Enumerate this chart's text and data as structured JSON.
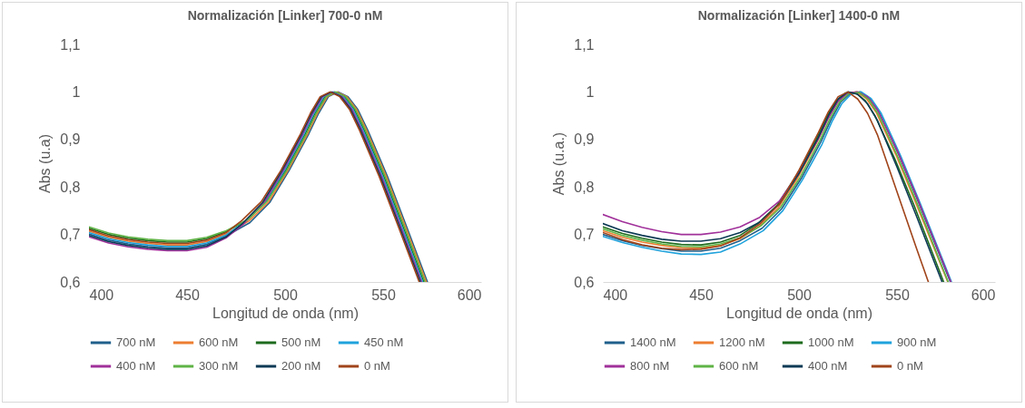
{
  "chart_data": [
    {
      "type": "line",
      "title": "Normalización [Linker] 700-0  nM",
      "xlabel": "Longitud de onda (nm)",
      "ylabel": "Abs (u.a)",
      "xlim": [
        400,
        600
      ],
      "xticks": [
        400,
        450,
        500,
        550,
        600
      ],
      "ylim": [
        0.6,
        1.1
      ],
      "yticks": [
        {
          "value": 0.6,
          "label": "0,6"
        },
        {
          "value": 0.7,
          "label": "0,7"
        },
        {
          "value": 0.8,
          "label": "0,8"
        },
        {
          "value": 0.9,
          "label": "0,9"
        },
        1,
        {
          "value": 1.1,
          "label": "1,1"
        }
      ],
      "grid": false,
      "legend": "bottom",
      "marker": "none",
      "line_style": "solid",
      "series": [
        {
          "name": "700 nM",
          "color": "#1f5f8b",
          "x": [
            400,
            410,
            420,
            430,
            440,
            450,
            460,
            470,
            482.1,
            492.1,
            502.1,
            512.1,
            517.1,
            522.1,
            527.1,
            532.1,
            537.1,
            542.1,
            552.1,
            562.1,
            572.6
          ],
          "values": [
            0.701,
            0.688,
            0.68,
            0.675,
            0.672,
            0.672,
            0.679,
            0.697,
            0.725,
            0.767,
            0.835,
            0.912,
            0.955,
            0.99,
            1.0,
            0.99,
            0.963,
            0.92,
            0.823,
            0.715,
            0.6
          ]
        },
        {
          "name": "600 nM",
          "color": "#ed7d31",
          "x": [
            400,
            410,
            420,
            430,
            440,
            450,
            460,
            470,
            481.5,
            491.5,
            501.5,
            511.5,
            516.5,
            521.5,
            526.5,
            531.5,
            536.5,
            541.5,
            551.5,
            561.5,
            572
          ],
          "values": [
            0.707,
            0.694,
            0.686,
            0.681,
            0.678,
            0.678,
            0.685,
            0.701,
            0.728,
            0.768,
            0.835,
            0.912,
            0.955,
            0.99,
            1.0,
            0.99,
            0.963,
            0.92,
            0.823,
            0.715,
            0.6
          ]
        },
        {
          "name": "500 nM",
          "color": "#1e6b1e",
          "x": [
            400,
            410,
            420,
            430,
            440,
            450,
            460,
            470,
            480.3,
            490.3,
            500.3,
            510.3,
            515.3,
            520.3,
            525.3,
            530.3,
            535.3,
            540.3,
            550.3,
            560.3,
            570.8
          ],
          "values": [
            0.713,
            0.7,
            0.692,
            0.687,
            0.684,
            0.684,
            0.691,
            0.706,
            0.73,
            0.77,
            0.835,
            0.912,
            0.955,
            0.99,
            1.0,
            0.99,
            0.963,
            0.92,
            0.823,
            0.715,
            0.6
          ]
        },
        {
          "name": "450 nM",
          "color": "#1fa2dc",
          "x": [
            400,
            410,
            420,
            430,
            440,
            450,
            460,
            470,
            479.7,
            489.7,
            499.7,
            509.7,
            514.7,
            519.7,
            524.7,
            529.7,
            534.7,
            539.7,
            549.7,
            559.7,
            570.2
          ],
          "values": [
            0.704,
            0.691,
            0.683,
            0.678,
            0.675,
            0.675,
            0.682,
            0.699,
            0.727,
            0.768,
            0.835,
            0.912,
            0.955,
            0.99,
            1.0,
            0.99,
            0.963,
            0.92,
            0.823,
            0.715,
            0.6
          ]
        },
        {
          "name": "400 nM",
          "color": "#a0309a",
          "x": [
            400,
            410,
            420,
            430,
            440,
            450,
            460,
            470,
            479.1,
            489.1,
            499.1,
            509.1,
            514.1,
            519.1,
            524.1,
            529.1,
            534.1,
            539.1,
            549.1,
            559.1,
            569.6
          ],
          "values": [
            0.695,
            0.682,
            0.674,
            0.669,
            0.666,
            0.666,
            0.673,
            0.693,
            0.723,
            0.766,
            0.835,
            0.912,
            0.955,
            0.99,
            1.0,
            0.99,
            0.963,
            0.92,
            0.823,
            0.715,
            0.6
          ]
        },
        {
          "name": "300 nM",
          "color": "#5fb346",
          "x": [
            400,
            410,
            420,
            430,
            440,
            450,
            460,
            470,
            480.9,
            490.9,
            500.9,
            510.9,
            515.9,
            520.9,
            525.9,
            530.9,
            535.9,
            540.9,
            550.9,
            560.9,
            571.4
          ],
          "values": [
            0.716,
            0.703,
            0.695,
            0.69,
            0.687,
            0.687,
            0.694,
            0.708,
            0.731,
            0.77,
            0.835,
            0.912,
            0.955,
            0.99,
            1.0,
            0.99,
            0.963,
            0.92,
            0.823,
            0.715,
            0.6
          ]
        },
        {
          "name": "200 nM",
          "color": "#0d3a55",
          "x": [
            400,
            410,
            420,
            430,
            440,
            450,
            460,
            470,
            478.5,
            488.5,
            498.5,
            508.5,
            513.5,
            518.5,
            523.5,
            528.5,
            533.5,
            538.5,
            548.5,
            558.5,
            569
          ],
          "values": [
            0.698,
            0.685,
            0.677,
            0.672,
            0.669,
            0.669,
            0.676,
            0.695,
            0.724,
            0.767,
            0.835,
            0.912,
            0.955,
            0.99,
            1.0,
            0.99,
            0.963,
            0.92,
            0.823,
            0.715,
            0.6
          ]
        },
        {
          "name": "0 nM",
          "color": "#a0441a",
          "x": [
            400,
            410,
            420,
            430,
            440,
            450,
            460,
            470,
            477.9,
            487.9,
            497.9,
            507.9,
            512.9,
            517.9,
            522.9,
            527.9,
            532.9,
            537.9,
            547.9,
            557.9,
            568.4
          ],
          "values": [
            0.71,
            0.697,
            0.689,
            0.684,
            0.681,
            0.681,
            0.688,
            0.704,
            0.729,
            0.769,
            0.835,
            0.912,
            0.955,
            0.99,
            1.0,
            0.99,
            0.963,
            0.92,
            0.823,
            0.715,
            0.6
          ]
        }
      ]
    },
    {
      "type": "line",
      "title": "Normalización [Linker] 1400-0  nM",
      "xlabel": "Longitud de onda (nm)",
      "ylabel": "Abs (u.a.)",
      "xlim": [
        400,
        600
      ],
      "xticks": [
        400,
        450,
        500,
        550,
        600
      ],
      "ylim": [
        0.6,
        1.1
      ],
      "yticks": [
        {
          "value": 0.6,
          "label": "0,6"
        },
        {
          "value": 0.7,
          "label": "0,7"
        },
        {
          "value": 0.8,
          "label": "0,8"
        },
        {
          "value": 0.9,
          "label": "0,9"
        },
        1,
        {
          "value": 1.1,
          "label": "1,1"
        }
      ],
      "grid": false,
      "legend": "bottom",
      "marker": "none",
      "line_style": "solid",
      "series": [
        {
          "name": "1400 nM",
          "color": "#1f5f8b",
          "x": [
            400,
            410,
            420,
            430,
            440,
            450,
            460,
            470,
            481.2,
            491.2,
            501.2,
            511.2,
            516.2,
            521.2,
            526.2,
            531.2,
            536.2,
            541.2,
            551.2,
            561.2,
            577.2
          ],
          "values": [
            0.7,
            0.687,
            0.677,
            0.67,
            0.665,
            0.665,
            0.671,
            0.687,
            0.713,
            0.754,
            0.818,
            0.895,
            0.94,
            0.978,
            0.997,
            1.0,
            0.985,
            0.955,
            0.865,
            0.765,
            0.6
          ]
        },
        {
          "name": "1200 nM",
          "color": "#ed7d31",
          "x": [
            400,
            410,
            420,
            430,
            440,
            450,
            460,
            470,
            479.4,
            489.4,
            499.4,
            509.4,
            514.4,
            519.4,
            524.4,
            529.4,
            534.4,
            539.4,
            549.4,
            559.4,
            575.9
          ],
          "values": [
            0.708,
            0.694,
            0.684,
            0.677,
            0.672,
            0.671,
            0.677,
            0.691,
            0.716,
            0.756,
            0.819,
            0.896,
            0.941,
            0.978,
            0.997,
            1.0,
            0.986,
            0.957,
            0.868,
            0.768,
            0.6
          ]
        },
        {
          "name": "1000 nM",
          "color": "#1e6b1e",
          "x": [
            400,
            410,
            420,
            430,
            440,
            450,
            460,
            470,
            478.8,
            488.8,
            498.8,
            508.8,
            513.8,
            518.8,
            523.8,
            528.8,
            533.8,
            538.8,
            548.8,
            558.8,
            573.8
          ],
          "values": [
            0.716,
            0.702,
            0.692,
            0.684,
            0.679,
            0.678,
            0.684,
            0.698,
            0.722,
            0.761,
            0.825,
            0.9,
            0.945,
            0.98,
            0.998,
            0.998,
            0.982,
            0.95,
            0.86,
            0.76,
            0.6
          ]
        },
        {
          "name": "900 nM",
          "color": "#1fa2dc",
          "x": [
            400,
            410,
            420,
            430,
            440,
            450,
            460,
            470,
            481.8,
            491.8,
            501.8,
            511.8,
            516.8,
            521.8,
            526.8,
            531.8,
            536.8,
            541.8,
            551.8,
            561.8,
            577.8
          ],
          "values": [
            0.696,
            0.683,
            0.673,
            0.665,
            0.659,
            0.658,
            0.663,
            0.68,
            0.708,
            0.75,
            0.815,
            0.89,
            0.937,
            0.975,
            0.996,
            1.0,
            0.986,
            0.956,
            0.866,
            0.766,
            0.6
          ]
        },
        {
          "name": "800 nM",
          "color": "#a0309a",
          "x": [
            400,
            410,
            420,
            430,
            440,
            450,
            460,
            470,
            480,
            490,
            500,
            510,
            515,
            520,
            525,
            530,
            535,
            540,
            550,
            560,
            577.5
          ],
          "values": [
            0.742,
            0.727,
            0.715,
            0.706,
            0.7,
            0.7,
            0.705,
            0.716,
            0.736,
            0.77,
            0.83,
            0.902,
            0.945,
            0.98,
            0.998,
            1.0,
            0.99,
            0.963,
            0.878,
            0.78,
            0.6
          ]
        },
        {
          "name": "600 nM",
          "color": "#5fb346",
          "x": [
            400,
            410,
            420,
            430,
            440,
            450,
            460,
            470,
            480.6,
            490.6,
            500.6,
            510.6,
            515.6,
            520.6,
            525.6,
            530.6,
            535.6,
            540.6,
            550.6,
            560.6,
            576.1
          ],
          "values": [
            0.712,
            0.698,
            0.688,
            0.68,
            0.675,
            0.674,
            0.68,
            0.693,
            0.718,
            0.757,
            0.82,
            0.897,
            0.942,
            0.978,
            0.997,
            0.999,
            0.984,
            0.952,
            0.862,
            0.762,
            0.6
          ]
        },
        {
          "name": "400 nM",
          "color": "#0d3a55",
          "x": [
            400,
            410,
            420,
            430,
            440,
            450,
            460,
            470,
            480,
            490,
            500,
            510,
            515,
            520,
            525,
            530,
            535,
            540,
            550,
            560,
            573
          ],
          "values": [
            0.723,
            0.708,
            0.698,
            0.69,
            0.686,
            0.686,
            0.691,
            0.704,
            0.726,
            0.764,
            0.828,
            0.905,
            0.95,
            0.985,
            1.0,
            0.995,
            0.975,
            0.94,
            0.842,
            0.738,
            0.6
          ]
        },
        {
          "name": "0 nM",
          "color": "#a0441a",
          "x": [
            400,
            410,
            420,
            430,
            440,
            450,
            460,
            470,
            480,
            490,
            500,
            510,
            515,
            520,
            525,
            530,
            535,
            540,
            550,
            560,
            566
          ],
          "values": [
            0.704,
            0.689,
            0.678,
            0.671,
            0.668,
            0.669,
            0.676,
            0.693,
            0.722,
            0.764,
            0.835,
            0.915,
            0.958,
            0.99,
            1.0,
            0.985,
            0.955,
            0.91,
            0.79,
            0.67,
            0.6
          ]
        }
      ]
    }
  ]
}
